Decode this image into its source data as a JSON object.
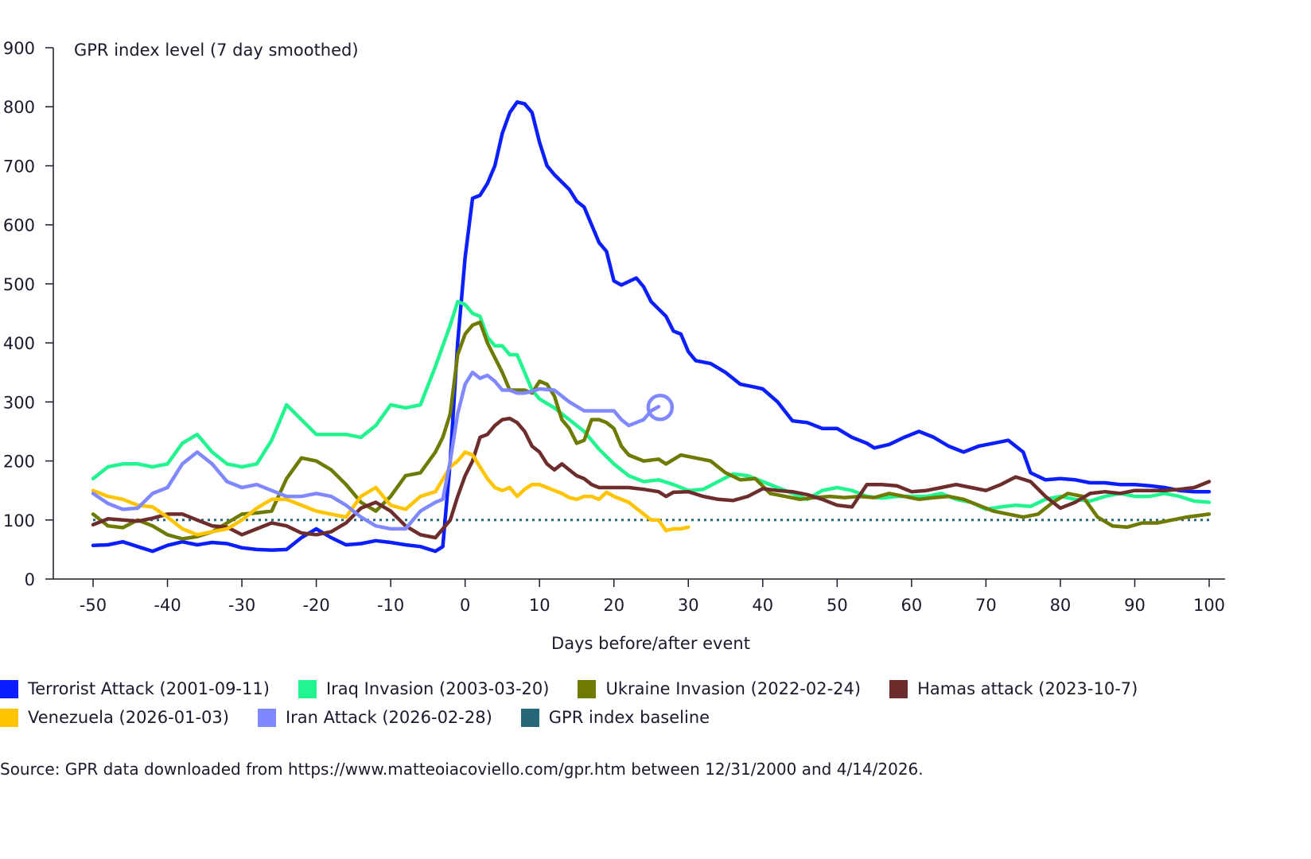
{
  "chart_data": {
    "type": "line",
    "title": "",
    "ylabel": "GPR index level (7 day smoothed)",
    "xlabel": "Days before/after event",
    "xlim": [
      -50,
      100
    ],
    "ylim": [
      0,
      900
    ],
    "xticks": [
      -50,
      -40,
      -30,
      -20,
      -10,
      0,
      10,
      20,
      30,
      40,
      50,
      60,
      70,
      80,
      90,
      100
    ],
    "yticks": [
      0,
      100,
      200,
      300,
      400,
      500,
      600,
      700,
      800,
      900
    ],
    "grid": false,
    "legend_position": "bottom",
    "baseline": {
      "name": "GPR index baseline",
      "value": 100,
      "color": "#26677a",
      "style": "dotted"
    },
    "series": [
      {
        "name": "Terrorist Attack (2001-09-11)",
        "color": "#0a1eff",
        "x": [
          -50,
          -48,
          -46,
          -44,
          -42,
          -40,
          -38,
          -36,
          -34,
          -32,
          -30,
          -28,
          -26,
          -24,
          -22,
          -20,
          -18,
          -16,
          -14,
          -12,
          -10,
          -8,
          -6,
          -4,
          -3,
          -2,
          -1,
          0,
          1,
          2,
          3,
          4,
          5,
          6,
          7,
          8,
          9,
          10,
          11,
          12,
          14,
          15,
          16,
          17,
          18,
          19,
          20,
          21,
          23,
          24,
          25,
          27,
          28,
          29,
          30,
          31,
          33,
          35,
          37,
          39,
          40,
          42,
          44,
          46,
          48,
          50,
          52,
          54,
          55,
          57,
          59,
          61,
          63,
          65,
          67,
          69,
          71,
          73,
          75,
          76,
          78,
          80,
          82,
          84,
          86,
          88,
          90,
          92,
          94,
          96,
          98,
          100
        ],
        "y": [
          57,
          58,
          63,
          55,
          47,
          57,
          63,
          58,
          62,
          60,
          53,
          50,
          49,
          50,
          70,
          85,
          70,
          58,
          60,
          65,
          62,
          58,
          55,
          47,
          55,
          200,
          400,
          545,
          645,
          650,
          670,
          700,
          755,
          790,
          808,
          805,
          790,
          740,
          700,
          685,
          660,
          640,
          630,
          600,
          570,
          555,
          505,
          498,
          510,
          495,
          470,
          445,
          420,
          415,
          385,
          370,
          365,
          350,
          330,
          325,
          322,
          300,
          268,
          265,
          255,
          255,
          240,
          230,
          222,
          228,
          240,
          250,
          240,
          225,
          215,
          225,
          230,
          235,
          215,
          180,
          168,
          170,
          168,
          163,
          163,
          160,
          160,
          158,
          155,
          150,
          148,
          148
        ]
      },
      {
        "name": "Iraq Invasion (2003-03-20)",
        "color": "#22f58f",
        "x": [
          -50,
          -48,
          -46,
          -44,
          -42,
          -40,
          -38,
          -36,
          -34,
          -32,
          -30,
          -28,
          -26,
          -24,
          -22,
          -20,
          -18,
          -16,
          -14,
          -12,
          -10,
          -8,
          -6,
          -4,
          -2,
          -1,
          0,
          1,
          2,
          3,
          4,
          5,
          6,
          7,
          8,
          9,
          10,
          12,
          14,
          16,
          18,
          20,
          22,
          24,
          26,
          28,
          30,
          32,
          34,
          36,
          38,
          40,
          42,
          44,
          46,
          48,
          50,
          52,
          54,
          56,
          58,
          60,
          62,
          64,
          66,
          68,
          70,
          72,
          74,
          76,
          78,
          80,
          82,
          84,
          86,
          88,
          90,
          92,
          94,
          96,
          98,
          100
        ],
        "y": [
          170,
          190,
          195,
          195,
          190,
          195,
          230,
          245,
          215,
          195,
          190,
          195,
          235,
          295,
          270,
          245,
          245,
          245,
          240,
          260,
          295,
          290,
          295,
          360,
          430,
          470,
          465,
          450,
          445,
          410,
          395,
          395,
          380,
          380,
          350,
          320,
          305,
          290,
          270,
          250,
          220,
          195,
          175,
          165,
          168,
          160,
          150,
          152,
          165,
          178,
          175,
          165,
          155,
          145,
          135,
          150,
          155,
          150,
          140,
          137,
          140,
          140,
          140,
          145,
          135,
          130,
          118,
          122,
          125,
          123,
          135,
          140,
          135,
          132,
          140,
          145,
          140,
          140,
          145,
          140,
          132,
          130
        ]
      },
      {
        "name": "Ukraine Invasion (2022-02-24)",
        "color": "#6e7a00",
        "x": [
          -50,
          -48,
          -46,
          -44,
          -42,
          -40,
          -38,
          -36,
          -34,
          -32,
          -30,
          -28,
          -26,
          -24,
          -22,
          -20,
          -18,
          -16,
          -14,
          -12,
          -10,
          -8,
          -6,
          -4,
          -3,
          -2,
          -1,
          0,
          1,
          2,
          3,
          5,
          6,
          7,
          8,
          9,
          10,
          11,
          12,
          13,
          14,
          15,
          16,
          17,
          18,
          19,
          20,
          21,
          22,
          24,
          26,
          27,
          29,
          31,
          33,
          35,
          37,
          39,
          41,
          43,
          45,
          47,
          49,
          51,
          53,
          55,
          57,
          59,
          61,
          63,
          65,
          67,
          69,
          71,
          73,
          75,
          77,
          79,
          81,
          83,
          85,
          87,
          89,
          91,
          93,
          95,
          97,
          100
        ],
        "y": [
          110,
          90,
          87,
          100,
          90,
          75,
          68,
          72,
          80,
          95,
          110,
          112,
          115,
          170,
          205,
          200,
          185,
          160,
          130,
          115,
          140,
          175,
          180,
          215,
          240,
          280,
          380,
          415,
          430,
          435,
          400,
          350,
          320,
          320,
          320,
          315,
          335,
          330,
          310,
          270,
          255,
          230,
          235,
          270,
          270,
          265,
          255,
          225,
          210,
          200,
          203,
          195,
          210,
          205,
          200,
          180,
          168,
          170,
          145,
          140,
          135,
          138,
          140,
          138,
          140,
          138,
          145,
          140,
          135,
          138,
          140,
          135,
          125,
          115,
          110,
          105,
          110,
          130,
          145,
          140,
          105,
          90,
          88,
          95,
          95,
          100,
          105,
          110
        ]
      },
      {
        "name": "Hamas attack (2023-10-7)",
        "color": "#6e2d2d",
        "x": [
          -50,
          -48,
          -46,
          -44,
          -42,
          -40,
          -38,
          -36,
          -34,
          -32,
          -30,
          -28,
          -26,
          -24,
          -22,
          -20,
          -18,
          -16,
          -14,
          -12,
          -10,
          -8,
          -6,
          -4,
          -2,
          -1,
          0,
          1,
          2,
          3,
          4,
          5,
          6,
          7,
          8,
          9,
          10,
          11,
          12,
          13,
          14,
          15,
          16,
          17,
          18,
          20,
          22,
          24,
          26,
          27,
          28,
          30,
          32,
          34,
          36,
          38,
          40,
          42,
          44,
          46,
          48,
          50,
          52,
          54,
          56,
          58,
          60,
          62,
          64,
          66,
          68,
          70,
          72,
          74,
          76,
          78,
          80,
          82,
          84,
          86,
          88,
          90,
          92,
          94,
          96,
          98,
          100
        ],
        "y": [
          92,
          102,
          100,
          98,
          103,
          110,
          110,
          100,
          90,
          88,
          75,
          85,
          95,
          90,
          78,
          75,
          80,
          95,
          120,
          130,
          115,
          90,
          75,
          70,
          100,
          140,
          175,
          200,
          240,
          245,
          260,
          270,
          272,
          265,
          250,
          225,
          215,
          195,
          185,
          195,
          185,
          175,
          170,
          160,
          155,
          155,
          155,
          152,
          148,
          140,
          147,
          148,
          140,
          135,
          133,
          140,
          153,
          150,
          148,
          143,
          135,
          125,
          122,
          160,
          160,
          158,
          148,
          150,
          155,
          160,
          155,
          150,
          160,
          173,
          165,
          140,
          120,
          130,
          145,
          148,
          145,
          150,
          150,
          150,
          152,
          155,
          165
        ]
      },
      {
        "name": "Venezuela (2026-01-03)",
        "color": "#ffc400",
        "x": [
          -50,
          -48,
          -46,
          -44,
          -42,
          -40,
          -38,
          -36,
          -34,
          -32,
          -30,
          -28,
          -26,
          -24,
          -22,
          -20,
          -18,
          -16,
          -14,
          -12,
          -10,
          -8,
          -6,
          -4,
          -2,
          -1,
          0,
          1,
          2,
          3,
          4,
          5,
          6,
          7,
          8,
          9,
          10,
          11,
          12,
          13,
          14,
          15,
          16,
          17,
          18,
          19,
          20,
          22,
          24,
          25,
          26,
          27,
          28,
          29,
          30
        ],
        "y": [
          150,
          140,
          135,
          125,
          122,
          105,
          85,
          75,
          80,
          85,
          100,
          120,
          135,
          135,
          125,
          115,
          110,
          105,
          140,
          155,
          125,
          118,
          140,
          148,
          190,
          200,
          215,
          210,
          190,
          170,
          155,
          150,
          155,
          140,
          152,
          160,
          160,
          155,
          150,
          145,
          138,
          135,
          140,
          140,
          135,
          147,
          140,
          130,
          110,
          100,
          100,
          82,
          85,
          85,
          88
        ]
      },
      {
        "name": "Iran Attack (2026-02-28)",
        "color": "#8088ff",
        "end_marker": "circle",
        "x": [
          -50,
          -48,
          -46,
          -44,
          -42,
          -40,
          -38,
          -36,
          -34,
          -32,
          -30,
          -28,
          -26,
          -24,
          -22,
          -20,
          -18,
          -16,
          -14,
          -12,
          -10,
          -8,
          -6,
          -4,
          -3,
          -2,
          -1,
          0,
          1,
          2,
          3,
          4,
          5,
          6,
          7,
          8,
          9,
          10,
          12,
          14,
          16,
          18,
          20,
          21,
          22,
          23,
          24,
          25,
          26
        ],
        "y": [
          145,
          128,
          118,
          120,
          145,
          155,
          195,
          215,
          195,
          165,
          155,
          160,
          150,
          140,
          140,
          145,
          140,
          125,
          105,
          90,
          85,
          85,
          115,
          130,
          135,
          200,
          280,
          330,
          350,
          340,
          345,
          335,
          320,
          320,
          315,
          315,
          318,
          322,
          320,
          300,
          285,
          285,
          285,
          270,
          260,
          265,
          270,
          285,
          292
        ]
      }
    ]
  },
  "legend": [
    "Terrorist Attack (2001-09-11)",
    "Iraq Invasion (2003-03-20)",
    "Ukraine Invasion (2022-02-24)",
    "Hamas attack (2023-10-7)",
    "Venezuela (2026-01-03)",
    "Iran Attack (2026-02-28)",
    "GPR index baseline"
  ],
  "source": "Source: GPR data downloaded from https://www.matteoiacoviello.com/gpr.htm between 12/31/2000 and 4/14/2026."
}
